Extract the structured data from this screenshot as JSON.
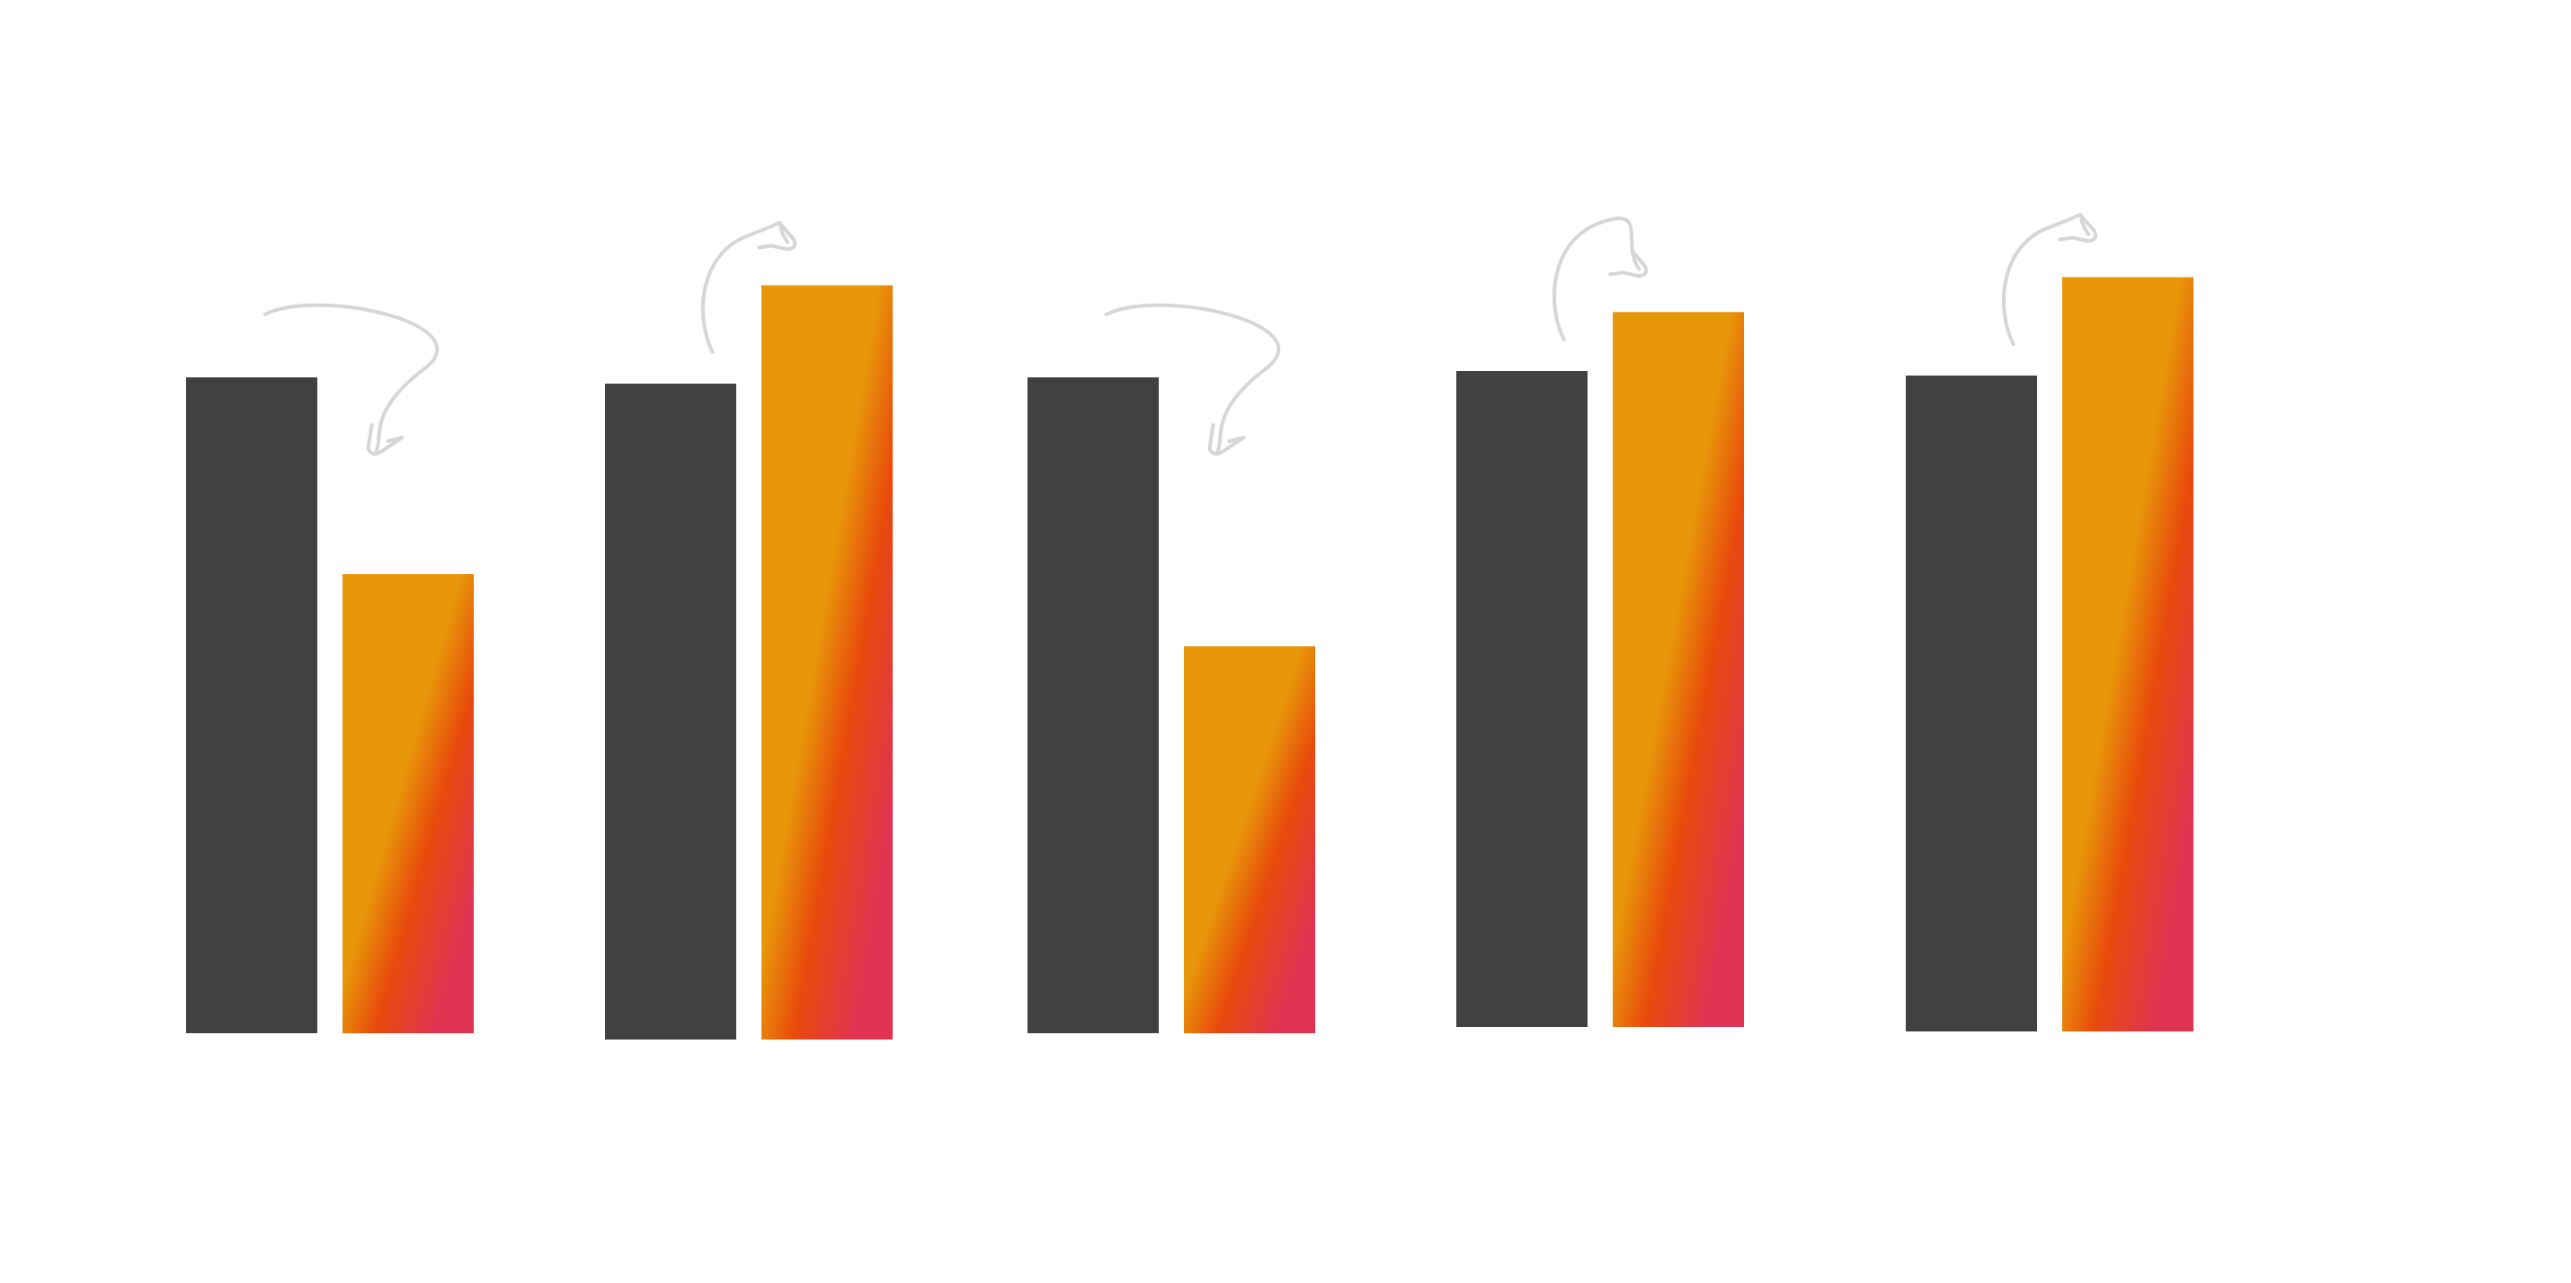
{
  "chart_data": {
    "type": "bar",
    "categories": [
      "",
      "",
      "",
      "",
      ""
    ],
    "series": [
      {
        "values": [
          100,
          100,
          100,
          100,
          100
        ]
      },
      {
        "values": [
          70,
          115,
          59,
          109,
          115
        ]
      }
    ],
    "ylim": [
      0,
      120
    ],
    "grid": false,
    "legend": "none",
    "colors": {
      "base": "#414141",
      "gradient": [
        "#e8960a",
        "#e94a0c",
        "#e03352"
      ],
      "arrow": "#d6d6d6"
    },
    "change_arrows": [
      "down",
      "up",
      "down",
      "up",
      "up"
    ]
  }
}
